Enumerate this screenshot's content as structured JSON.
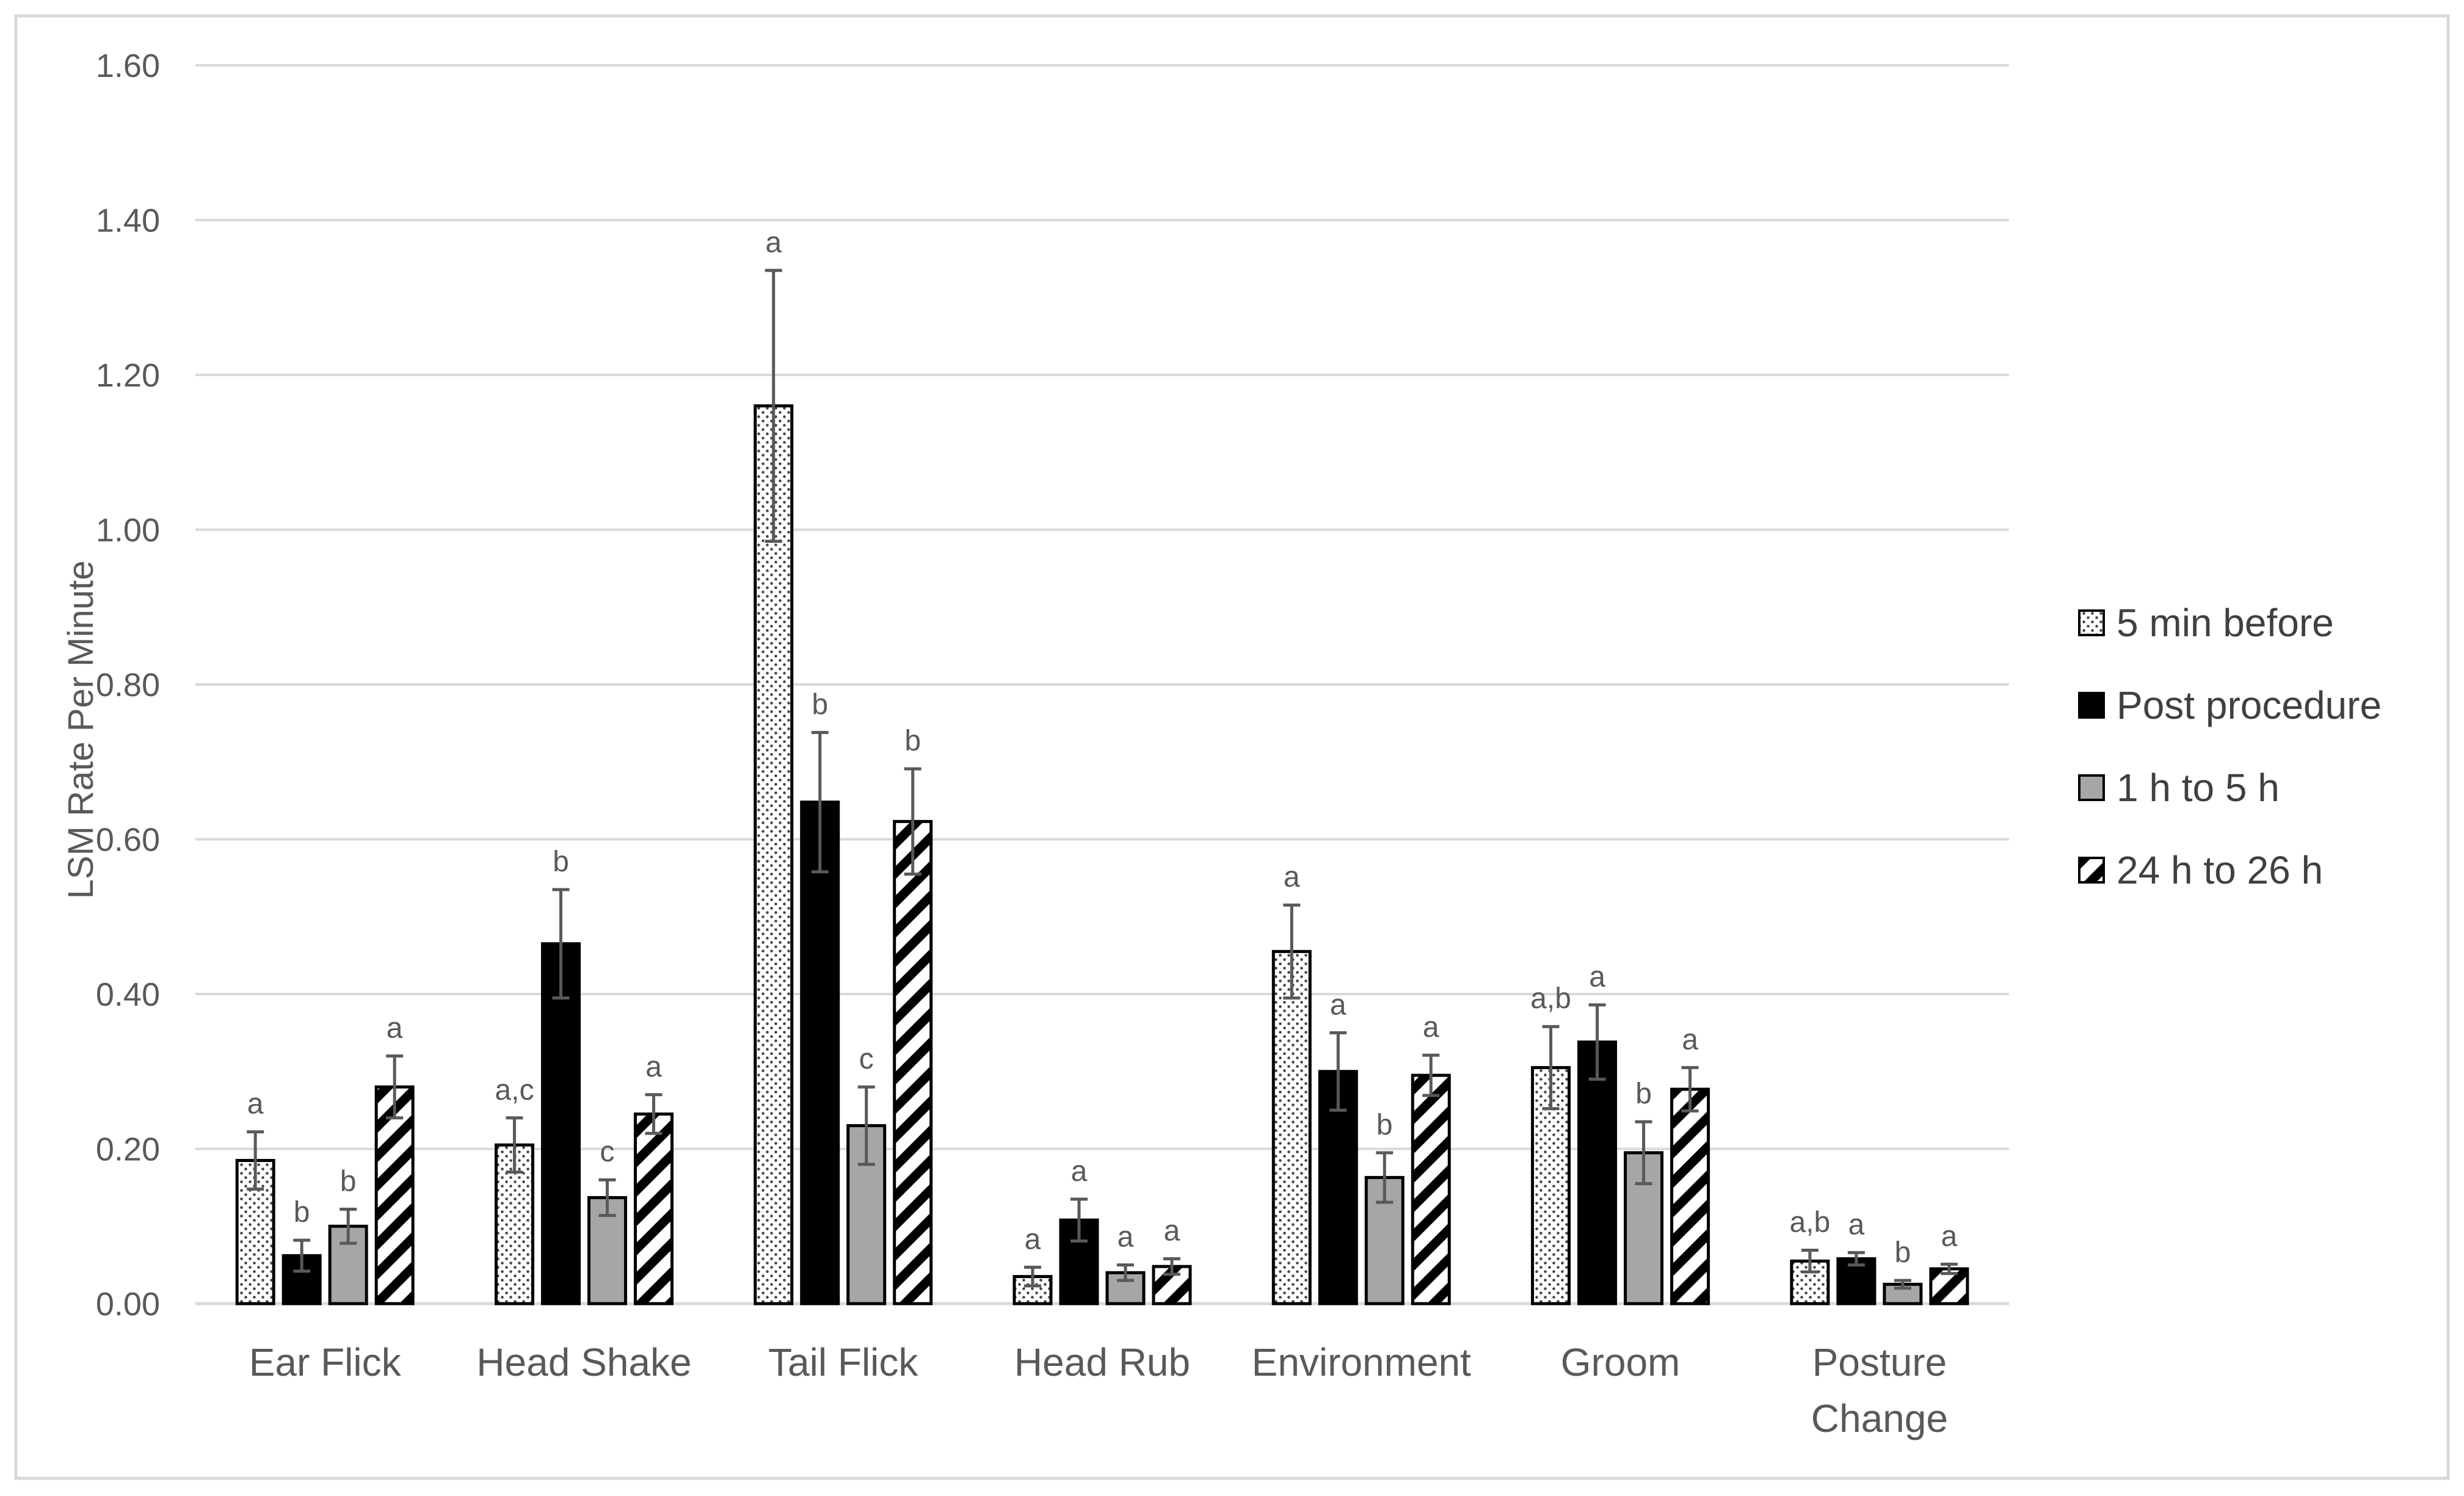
{
  "chart_data": {
    "type": "bar",
    "title": "",
    "xlabel": "",
    "ylabel": "LSM Rate Per Minute",
    "ylim": [
      0,
      1.6
    ],
    "yticks": [
      "0.00",
      "0.20",
      "0.40",
      "0.60",
      "0.80",
      "1.00",
      "1.20",
      "1.40",
      "1.60"
    ],
    "grid": true,
    "legend_position": "right",
    "categories": [
      [
        "Ear Flick"
      ],
      [
        "Head Shake"
      ],
      [
        "Tail Flick"
      ],
      [
        "Head Rub"
      ],
      [
        "Environment"
      ],
      [
        "Groom"
      ],
      [
        "Posture",
        "Change"
      ]
    ],
    "series": [
      {
        "name": "5 min before",
        "pattern": "dots",
        "color": "#ffffff",
        "values": [
          0.185,
          0.205,
          1.16,
          0.035,
          0.455,
          0.305,
          0.055
        ],
        "errors": [
          0.037,
          0.035,
          0.175,
          0.012,
          0.06,
          0.053,
          0.014
        ],
        "labels": [
          "a",
          "a,c",
          "a",
          "a",
          "a",
          "a,b",
          "a,b"
        ]
      },
      {
        "name": "Post procedure",
        "pattern": "solid",
        "color": "#000000",
        "values": [
          0.062,
          0.465,
          0.648,
          0.108,
          0.3,
          0.338,
          0.058
        ],
        "errors": [
          0.02,
          0.07,
          0.09,
          0.027,
          0.05,
          0.048,
          0.008
        ],
        "labels": [
          "b",
          "b",
          "b",
          "a",
          "a",
          "a",
          "a"
        ]
      },
      {
        "name": "1 h to 5 h",
        "pattern": "solid",
        "color": "#a6a6a6",
        "values": [
          0.1,
          0.137,
          0.23,
          0.04,
          0.163,
          0.195,
          0.025
        ],
        "errors": [
          0.022,
          0.023,
          0.05,
          0.01,
          0.032,
          0.04,
          0.005
        ],
        "labels": [
          "b",
          "c",
          "c",
          "a",
          "b",
          "b",
          "b"
        ]
      },
      {
        "name": "24 h to 26 h",
        "pattern": "diagonal-stripes",
        "color": "#ffffff",
        "values": [
          0.28,
          0.245,
          0.623,
          0.048,
          0.295,
          0.277,
          0.045
        ],
        "errors": [
          0.04,
          0.025,
          0.068,
          0.01,
          0.026,
          0.028,
          0.006
        ],
        "labels": [
          "a",
          "a",
          "b",
          "a",
          "a",
          "a",
          "a"
        ]
      }
    ]
  }
}
